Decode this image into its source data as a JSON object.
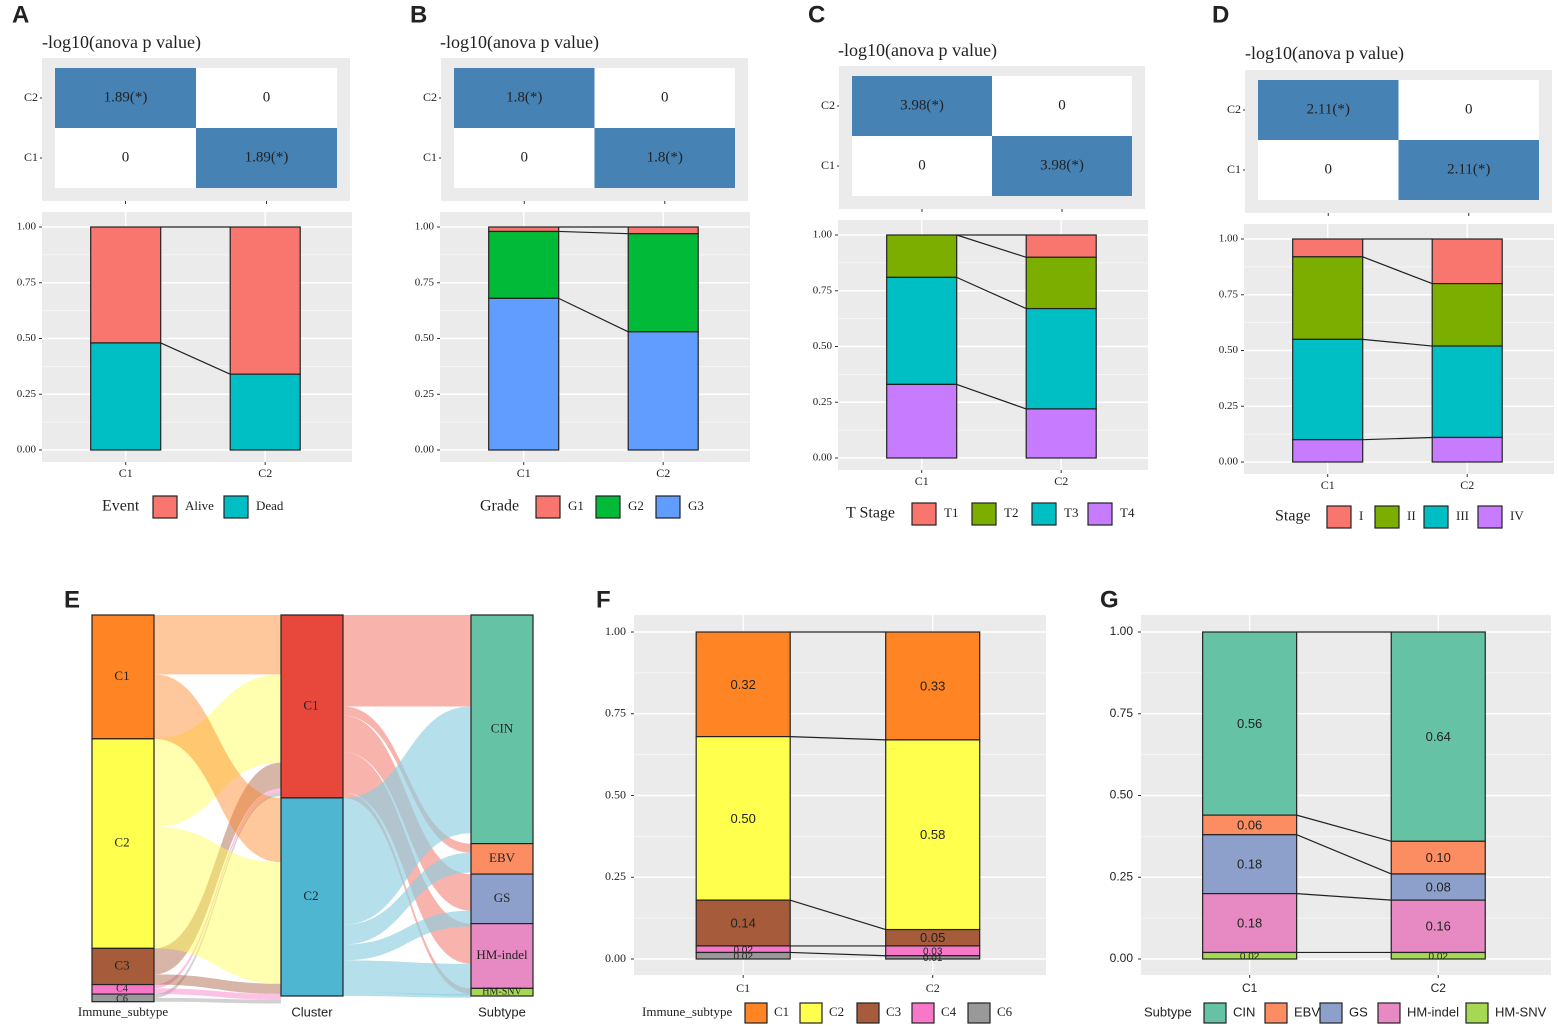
{
  "panel_labels": [
    "A",
    "B",
    "C",
    "D",
    "E",
    "F",
    "G"
  ],
  "heatmap_title": "-log10(anova p value)",
  "axis_ticks_y": [
    "1.00",
    "0.75",
    "0.50",
    "0.25",
    "0.00"
  ],
  "colors": {
    "heat_sig": "#4682b4",
    "panel_bg": "#ebebeb",
    "grid": "#ffffff",
    "event": [
      "#f8766d",
      "#00bfc4"
    ],
    "grade": [
      "#f8766d",
      "#00ba38",
      "#619cff"
    ],
    "tstage": [
      "#f8766d",
      "#7cae00",
      "#00bfc4",
      "#c77cff"
    ],
    "stage": [
      "#f8766d",
      "#7cae00",
      "#00bfc4",
      "#c77cff"
    ],
    "immune": [
      "#ff8424",
      "#ffff4d",
      "#a65c3b",
      "#f778c8",
      "#999999"
    ],
    "subtype": [
      "#66c2a5",
      "#fc8d62",
      "#8da0cb",
      "#e78ac3",
      "#a6d854"
    ]
  },
  "chart_data": [
    {
      "id": "A",
      "type": "bar",
      "title": "-log10(anova p value)",
      "heatmap": {
        "rows": [
          "C2",
          "C1"
        ],
        "cells": [
          [
            "1.89(*)",
            "0"
          ],
          [
            "0",
            "1.89(*)"
          ]
        ]
      },
      "categories": [
        "C1",
        "C2"
      ],
      "ylim": [
        0,
        1
      ],
      "legend_title": "Event",
      "series": [
        {
          "name": "Alive",
          "values": [
            0.52,
            0.66
          ]
        },
        {
          "name": "Dead",
          "values": [
            0.48,
            0.34
          ]
        }
      ]
    },
    {
      "id": "B",
      "type": "bar",
      "title": "-log10(anova p value)",
      "heatmap": {
        "rows": [
          "C2",
          "C1"
        ],
        "cells": [
          [
            "1.8(*)",
            "0"
          ],
          [
            "0",
            "1.8(*)"
          ]
        ]
      },
      "categories": [
        "C1",
        "C2"
      ],
      "ylim": [
        0,
        1
      ],
      "legend_title": "Grade",
      "series": [
        {
          "name": "G1",
          "values": [
            0.02,
            0.03
          ]
        },
        {
          "name": "G2",
          "values": [
            0.3,
            0.44
          ]
        },
        {
          "name": "G3",
          "values": [
            0.68,
            0.53
          ]
        }
      ]
    },
    {
      "id": "C",
      "type": "bar",
      "title": "-log10(anova p value)",
      "heatmap": {
        "rows": [
          "C2",
          "C1"
        ],
        "cells": [
          [
            "3.98(*)",
            "0"
          ],
          [
            "0",
            "3.98(*)"
          ]
        ]
      },
      "categories": [
        "C1",
        "C2"
      ],
      "ylim": [
        0,
        1
      ],
      "legend_title": "T Stage",
      "series": [
        {
          "name": "T1",
          "values": [
            0.0,
            0.1
          ]
        },
        {
          "name": "T2",
          "values": [
            0.19,
            0.23
          ]
        },
        {
          "name": "T3",
          "values": [
            0.48,
            0.45
          ]
        },
        {
          "name": "T4",
          "values": [
            0.33,
            0.22
          ]
        }
      ]
    },
    {
      "id": "D",
      "type": "bar",
      "title": "-log10(anova p value)",
      "heatmap": {
        "rows": [
          "C2",
          "C1"
        ],
        "cells": [
          [
            "2.11(*)",
            "0"
          ],
          [
            "0",
            "2.11(*)"
          ]
        ]
      },
      "categories": [
        "C1",
        "C2"
      ],
      "ylim": [
        0,
        1
      ],
      "legend_title": "Stage",
      "series": [
        {
          "name": "I",
          "values": [
            0.08,
            0.2
          ]
        },
        {
          "name": "II",
          "values": [
            0.37,
            0.28
          ]
        },
        {
          "name": "III",
          "values": [
            0.45,
            0.41
          ]
        },
        {
          "name": "IV",
          "values": [
            0.1,
            0.11
          ]
        }
      ]
    },
    {
      "id": "E",
      "type": "alluvial",
      "axes": [
        "Immune_subtype",
        "Cluster",
        "Subtype"
      ],
      "immune_subtype": [
        {
          "name": "C1",
          "value": 0.325
        },
        {
          "name": "C2",
          "value": 0.55
        },
        {
          "name": "C3",
          "value": 0.095
        },
        {
          "name": "C4",
          "value": 0.025
        },
        {
          "name": "C6",
          "value": 0.02
        }
      ],
      "cluster": [
        {
          "name": "C1",
          "value": 0.48
        },
        {
          "name": "C2",
          "value": 0.52
        }
      ],
      "subtype": [
        {
          "name": "CIN",
          "value": 0.6
        },
        {
          "name": "EBV",
          "value": 0.08
        },
        {
          "name": "GS",
          "value": 0.13
        },
        {
          "name": "HM-indel",
          "value": 0.17
        },
        {
          "name": "HM-SNV",
          "value": 0.02
        }
      ]
    },
    {
      "id": "F",
      "type": "bar",
      "categories": [
        "C1",
        "C2"
      ],
      "ylim": [
        0,
        1
      ],
      "legend_title": "Immune_subtype",
      "series": [
        {
          "name": "C1",
          "values": [
            0.32,
            0.33
          ],
          "labels": [
            "0.32",
            "0.33"
          ]
        },
        {
          "name": "C2",
          "values": [
            0.5,
            0.58
          ],
          "labels": [
            "0.50",
            "0.58"
          ]
        },
        {
          "name": "C3",
          "values": [
            0.14,
            0.05
          ],
          "labels": [
            "0.14",
            "0.05"
          ]
        },
        {
          "name": "C4",
          "values": [
            0.02,
            0.03
          ],
          "labels": [
            "0.02",
            "0.03"
          ]
        },
        {
          "name": "C6",
          "values": [
            0.02,
            0.01
          ],
          "labels": [
            "0.02",
            "0.01"
          ]
        }
      ]
    },
    {
      "id": "G",
      "type": "bar",
      "categories": [
        "C1",
        "C2"
      ],
      "ylim": [
        0,
        1
      ],
      "legend_title": "Subtype",
      "series": [
        {
          "name": "CIN",
          "values": [
            0.56,
            0.64
          ],
          "labels": [
            "0.56",
            "0.64"
          ]
        },
        {
          "name": "EBV",
          "values": [
            0.06,
            0.1
          ],
          "labels": [
            "0.06",
            "0.10"
          ]
        },
        {
          "name": "GS",
          "values": [
            0.18,
            0.08
          ],
          "labels": [
            "0.18",
            "0.08"
          ]
        },
        {
          "name": "HM-indel",
          "values": [
            0.18,
            0.16
          ],
          "labels": [
            "0.18",
            "0.16"
          ]
        },
        {
          "name": "HM-SNV",
          "values": [
            0.02,
            0.02
          ],
          "labels": [
            "0.02",
            "0.02"
          ]
        }
      ]
    }
  ]
}
